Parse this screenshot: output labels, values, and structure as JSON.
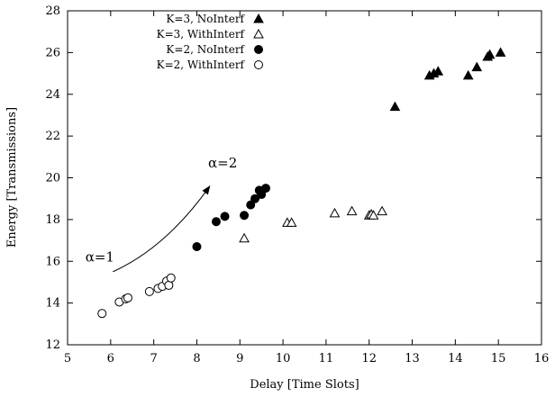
{
  "chart_data": {
    "type": "scatter",
    "xlabel": "Delay [Time Slots]",
    "ylabel": "Energy [Transmissions]",
    "xlim": [
      5,
      16
    ],
    "ylim": [
      12,
      28
    ],
    "xticks": [
      5,
      6,
      7,
      8,
      9,
      10,
      11,
      12,
      13,
      14,
      15,
      16
    ],
    "yticks": [
      12,
      14,
      16,
      18,
      20,
      22,
      24,
      26,
      28
    ],
    "grid": false,
    "legend_position": "top-left",
    "series": [
      {
        "name": "K=3, NoInterf",
        "marker": "filled-triangle",
        "points": [
          [
            12.6,
            23.4
          ],
          [
            13.4,
            24.9
          ],
          [
            13.5,
            25.0
          ],
          [
            13.6,
            25.1
          ],
          [
            14.3,
            24.9
          ],
          [
            14.5,
            25.3
          ],
          [
            14.75,
            25.8
          ],
          [
            14.8,
            25.9
          ],
          [
            15.05,
            26.0
          ]
        ]
      },
      {
        "name": "K=3, WithInterf",
        "marker": "open-triangle",
        "points": [
          [
            9.1,
            17.1
          ],
          [
            10.1,
            17.85
          ],
          [
            10.2,
            17.85
          ],
          [
            11.2,
            18.3
          ],
          [
            11.6,
            18.4
          ],
          [
            12.0,
            18.2
          ],
          [
            12.05,
            18.25
          ],
          [
            12.1,
            18.2
          ],
          [
            12.3,
            18.4
          ]
        ]
      },
      {
        "name": "K=2, NoInterf",
        "marker": "filled-circle",
        "points": [
          [
            8.0,
            16.7
          ],
          [
            8.45,
            17.9
          ],
          [
            8.65,
            18.15
          ],
          [
            9.1,
            18.2
          ],
          [
            9.25,
            18.7
          ],
          [
            9.35,
            19.0
          ],
          [
            9.45,
            19.4
          ],
          [
            9.5,
            19.2
          ],
          [
            9.6,
            19.5
          ]
        ]
      },
      {
        "name": "K=2, WithInterf",
        "marker": "open-circle",
        "points": [
          [
            5.8,
            13.5
          ],
          [
            6.2,
            14.05
          ],
          [
            6.35,
            14.2
          ],
          [
            6.4,
            14.25
          ],
          [
            6.9,
            14.55
          ],
          [
            7.1,
            14.7
          ],
          [
            7.2,
            14.8
          ],
          [
            7.3,
            15.05
          ],
          [
            7.35,
            14.85
          ],
          [
            7.4,
            15.2
          ]
        ]
      }
    ],
    "annotations": [
      {
        "text": "α=1",
        "x": 5.75,
        "y": 16.0
      },
      {
        "text": "α=2",
        "x": 8.6,
        "y": 20.5
      }
    ],
    "arrow": {
      "from": [
        6.05,
        15.5
      ],
      "to": [
        8.3,
        19.6
      ]
    }
  }
}
